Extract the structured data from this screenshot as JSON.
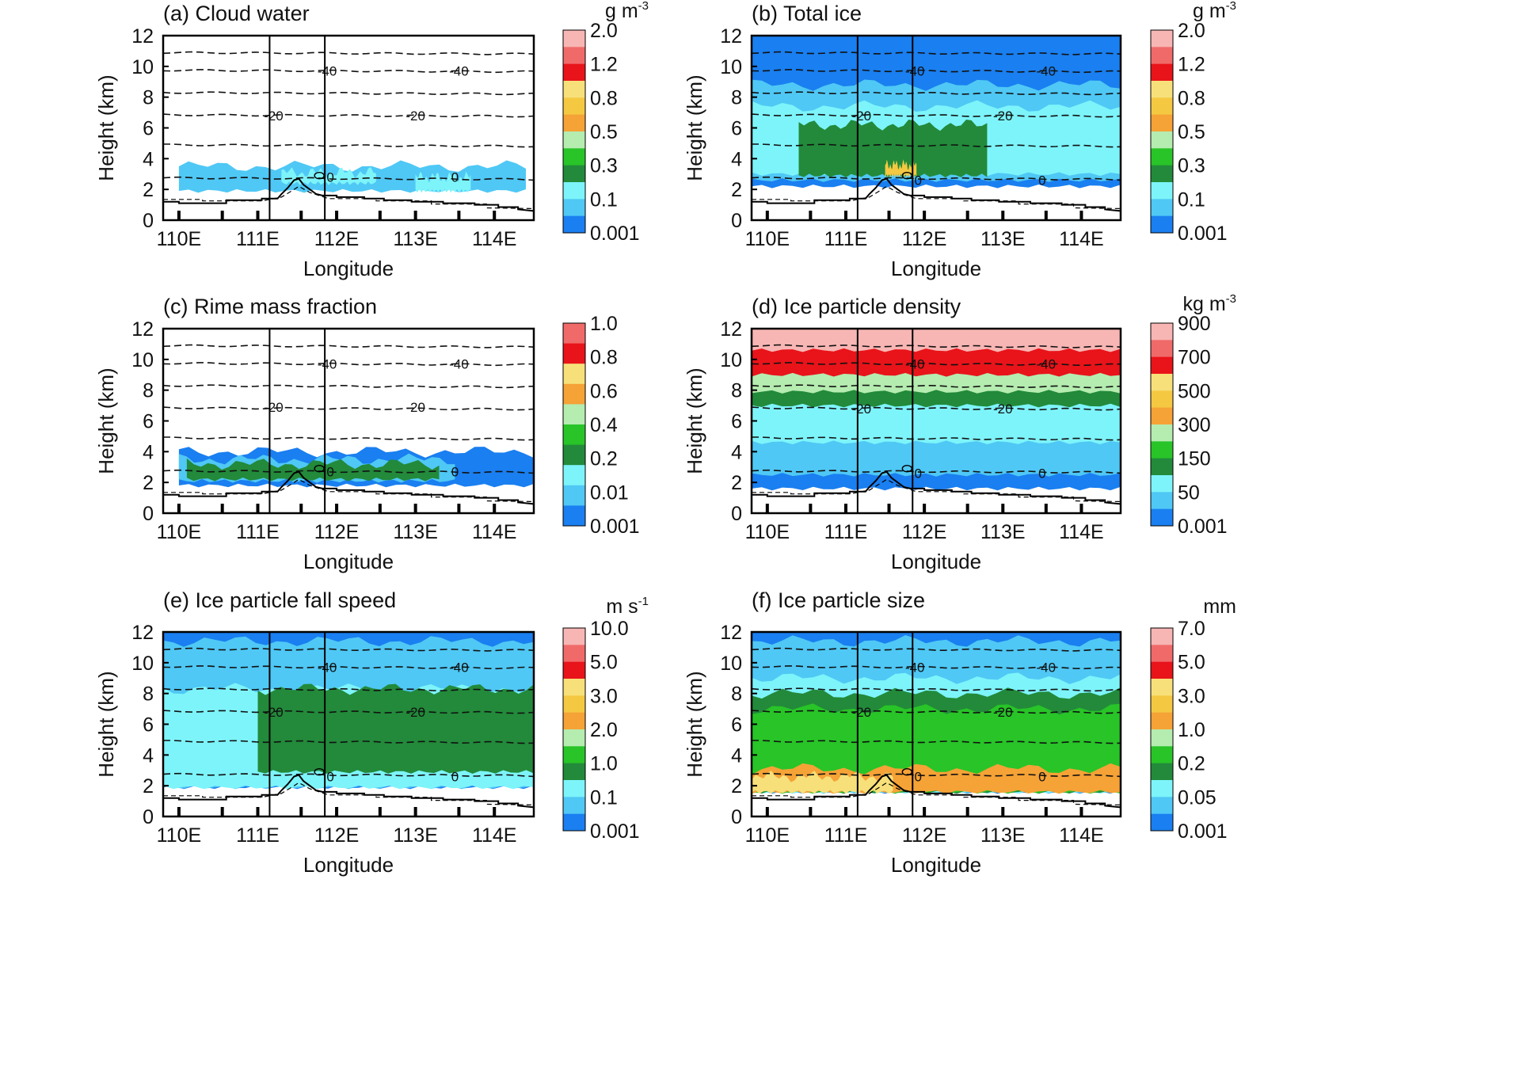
{
  "figure": {
    "xlabel": "Longitude",
    "ylabel": "Height (km)",
    "x_ticks": [
      "110E",
      "111E",
      "112E",
      "113E",
      "114E"
    ],
    "y_ticks": [
      "0",
      "2",
      "4",
      "6",
      "8",
      "10",
      "12"
    ],
    "isotherm_labels": [
      "0",
      "-20",
      "-40"
    ]
  },
  "chart_data": [
    {
      "type": "heatmap",
      "title": "(a)  Cloud water",
      "units": "g m-3",
      "unit_base": "g m",
      "unit_exp": "-3",
      "xlabel": "Longitude",
      "ylabel": "Height (km)",
      "xlim": [
        109.8,
        114.5
      ],
      "ylim": [
        0,
        12
      ],
      "colorbar": {
        "levels": [
          "2.0",
          "1.2",
          "0.8",
          "0.5",
          "0.3",
          "0.1",
          "0.001"
        ],
        "colors": [
          "#f7b6b4",
          "#f06a6a",
          "#e8141a",
          "#f7e07a",
          "#f5c842",
          "#f5a236",
          "#b5ecb0",
          "#28c428",
          "#228a3a",
          "#7df4fa",
          "#4fc8f5",
          "#1a7ff0"
        ]
      },
      "isotherms": [
        {
          "label": "0",
          "height": 2.8
        },
        {
          "label": "-20",
          "height": 6.8
        },
        {
          "label": "-40",
          "height": 9.7
        }
      ],
      "vertical_lines_lon": [
        111.15,
        111.85
      ],
      "fields": [
        {
          "level": 1,
          "lon": [
            110.0,
            114.4
          ],
          "bottom": 1.9,
          "top": 3.5
        },
        {
          "level": 2,
          "lon": [
            111.3,
            112.5
          ],
          "bottom": 2.4,
          "top": 3.1
        },
        {
          "level": 2,
          "lon": [
            113.0,
            113.7
          ],
          "bottom": 1.9,
          "top": 2.8
        }
      ]
    },
    {
      "type": "heatmap",
      "title": "(b)  Total ice",
      "units": "g m-3",
      "unit_base": "g m",
      "unit_exp": "-3",
      "xlabel": "Longitude",
      "ylabel": "Height (km)",
      "xlim": [
        109.8,
        114.5
      ],
      "ylim": [
        0,
        12
      ],
      "colorbar": {
        "levels": [
          "2.0",
          "1.2",
          "0.8",
          "0.5",
          "0.3",
          "0.1",
          "0.001"
        ],
        "colors": [
          "#f7b6b4",
          "#f06a6a",
          "#e8141a",
          "#f7e07a",
          "#f5c842",
          "#f5a236",
          "#b5ecb0",
          "#28c428",
          "#228a3a",
          "#7df4fa",
          "#4fc8f5",
          "#1a7ff0"
        ]
      },
      "isotherms": [
        {
          "label": "0",
          "height": 2.6
        },
        {
          "label": "-20",
          "height": 6.8
        },
        {
          "label": "-40",
          "height": 9.7
        }
      ],
      "vertical_lines_lon": [
        111.15,
        111.85
      ],
      "fields": [
        {
          "level": 0,
          "lon": [
            109.8,
            114.5
          ],
          "bottom": 2.2,
          "top": 12.0
        },
        {
          "level": 1,
          "lon": [
            109.8,
            114.5
          ],
          "bottom": 2.6,
          "top": 8.8
        },
        {
          "level": 2,
          "lon": [
            109.8,
            114.5
          ],
          "bottom": 3.0,
          "top": 7.4
        },
        {
          "level": 3,
          "lon": [
            110.4,
            112.8
          ],
          "bottom": 2.9,
          "top": 6.2
        },
        {
          "level": 7,
          "lon": [
            111.5,
            111.9
          ],
          "bottom": 2.9,
          "top": 3.6
        }
      ]
    },
    {
      "type": "heatmap",
      "title": "(c)  Rime mass fraction",
      "units": "",
      "unit_base": "",
      "unit_exp": "",
      "xlabel": "Longitude",
      "ylabel": "Height (km)",
      "xlim": [
        109.8,
        114.5
      ],
      "ylim": [
        0,
        12
      ],
      "colorbar": {
        "levels": [
          "1.0",
          "0.8",
          "0.6",
          "0.4",
          "0.2",
          "0.01",
          "0.001"
        ],
        "colors": [
          "#f06a6a",
          "#e8141a",
          "#f7e07a",
          "#f5a236",
          "#b5ecb0",
          "#28c428",
          "#228a3a",
          "#7df4fa",
          "#4fc8f5",
          "#1a7ff0"
        ]
      },
      "isotherms": [
        {
          "label": "0",
          "height": 2.7
        },
        {
          "label": "-20",
          "height": 6.9
        },
        {
          "label": "-40",
          "height": 9.7
        }
      ],
      "vertical_lines_lon": [
        111.15,
        111.85
      ],
      "fields": [
        {
          "level": 0,
          "lon": [
            110.0,
            114.5
          ],
          "bottom": 1.8,
          "top": 4.0
        },
        {
          "level": 1,
          "lon": [
            110.0,
            113.5
          ],
          "bottom": 2.1,
          "top": 3.5
        },
        {
          "level": 3,
          "lon": [
            110.1,
            113.3
          ],
          "bottom": 2.2,
          "top": 3.2
        }
      ]
    },
    {
      "type": "heatmap",
      "title": "(d)  Ice particle density",
      "units": "kg m-3",
      "unit_base": "kg m",
      "unit_exp": "-3",
      "xlabel": "Longitude",
      "ylabel": "Height (km)",
      "xlim": [
        109.8,
        114.5
      ],
      "ylim": [
        0,
        12
      ],
      "colorbar": {
        "levels": [
          "900",
          "700",
          "500",
          "300",
          "150",
          "50",
          "0.001"
        ],
        "colors": [
          "#f7b6b4",
          "#f06a6a",
          "#e8141a",
          "#f7e07a",
          "#f5c842",
          "#f5a236",
          "#b5ecb0",
          "#28c428",
          "#228a3a",
          "#7df4fa",
          "#4fc8f5",
          "#1a7ff0"
        ]
      },
      "isotherms": [
        {
          "label": "0",
          "height": 2.6
        },
        {
          "label": "-20",
          "height": 6.8
        },
        {
          "label": "-40",
          "height": 9.7
        }
      ],
      "vertical_lines_lon": [
        111.15,
        111.85
      ],
      "fields": [
        {
          "level": 0,
          "lon": [
            109.8,
            114.5
          ],
          "bottom": 1.6,
          "top": 12.0
        },
        {
          "level": 1,
          "lon": [
            109.8,
            114.5
          ],
          "bottom": 2.5,
          "top": 12.0
        },
        {
          "level": 2,
          "lon": [
            109.8,
            114.5
          ],
          "bottom": 4.6,
          "top": 12.0
        },
        {
          "level": 3,
          "lon": [
            109.8,
            114.5
          ],
          "bottom": 7.0,
          "top": 12.0
        },
        {
          "level": 5,
          "lon": [
            109.8,
            114.5
          ],
          "bottom": 7.9,
          "top": 12.0
        },
        {
          "level": 9,
          "lon": [
            109.8,
            114.5
          ],
          "bottom": 9.0,
          "top": 12.0
        },
        {
          "level": 11,
          "lon": [
            109.8,
            114.5
          ],
          "bottom": 10.6,
          "top": 12.0
        }
      ]
    },
    {
      "type": "heatmap",
      "title": "(e)  Ice particle fall speed",
      "units": "m s-1",
      "unit_base": "m s",
      "unit_exp": "-1",
      "xlabel": "Longitude",
      "ylabel": "Height (km)",
      "xlim": [
        109.8,
        114.5
      ],
      "ylim": [
        0,
        12
      ],
      "colorbar": {
        "levels": [
          "10.0",
          "5.0",
          "3.0",
          "2.0",
          "1.0",
          "0.1",
          "0.001"
        ],
        "colors": [
          "#f7b6b4",
          "#f06a6a",
          "#e8141a",
          "#f7e07a",
          "#f5c842",
          "#f5a236",
          "#b5ecb0",
          "#28c428",
          "#228a3a",
          "#7df4fa",
          "#4fc8f5",
          "#1a7ff0"
        ]
      },
      "isotherms": [
        {
          "label": "0",
          "height": 2.6
        },
        {
          "label": "-20",
          "height": 6.8
        },
        {
          "label": "-40",
          "height": 9.7
        }
      ],
      "vertical_lines_lon": [
        111.15,
        111.85
      ],
      "fields": [
        {
          "level": 0,
          "lon": [
            109.8,
            114.5
          ],
          "bottom": 1.9,
          "top": 12.0
        },
        {
          "level": 1,
          "lon": [
            109.8,
            114.5
          ],
          "bottom": 1.9,
          "top": 11.4
        },
        {
          "level": 2,
          "lon": [
            109.8,
            114.5
          ],
          "bottom": 1.9,
          "top": 8.3
        },
        {
          "level": 3,
          "lon": [
            111.0,
            114.5
          ],
          "bottom": 2.9,
          "top": 8.3
        }
      ]
    },
    {
      "type": "heatmap",
      "title": "(f)  Ice particle size",
      "units": "mm",
      "unit_base": "mm",
      "unit_exp": "",
      "xlabel": "Longitude",
      "ylabel": "Height (km)",
      "xlim": [
        109.8,
        114.5
      ],
      "ylim": [
        0,
        12
      ],
      "colorbar": {
        "levels": [
          "7.0",
          "5.0",
          "3.0",
          "1.0",
          "0.2",
          "0.05",
          "0.001"
        ],
        "colors": [
          "#f7b6b4",
          "#f06a6a",
          "#e8141a",
          "#f7e07a",
          "#f5c842",
          "#f5a236",
          "#b5ecb0",
          "#28c428",
          "#228a3a",
          "#7df4fa",
          "#4fc8f5",
          "#1a7ff0"
        ]
      },
      "isotherms": [
        {
          "label": "0",
          "height": 2.6
        },
        {
          "label": "-20",
          "height": 6.8
        },
        {
          "label": "-40",
          "height": 9.7
        }
      ],
      "vertical_lines_lon": [
        111.15,
        111.85
      ],
      "fields": [
        {
          "level": 0,
          "lon": [
            109.8,
            114.5
          ],
          "bottom": 1.6,
          "top": 12.0
        },
        {
          "level": 1,
          "lon": [
            109.8,
            114.5
          ],
          "bottom": 1.6,
          "top": 11.4
        },
        {
          "level": 2,
          "lon": [
            109.8,
            114.5
          ],
          "bottom": 1.6,
          "top": 9.0
        },
        {
          "level": 3,
          "lon": [
            109.8,
            114.5
          ],
          "bottom": 1.6,
          "top": 8.0
        },
        {
          "level": 4,
          "lon": [
            109.8,
            114.5
          ],
          "bottom": 1.6,
          "top": 7.0
        },
        {
          "level": 6,
          "lon": [
            109.8,
            114.5
          ],
          "bottom": 1.6,
          "top": 3.1
        },
        {
          "level": 8,
          "lon": [
            109.8,
            111.6
          ],
          "bottom": 1.6,
          "top": 2.6
        }
      ]
    }
  ]
}
